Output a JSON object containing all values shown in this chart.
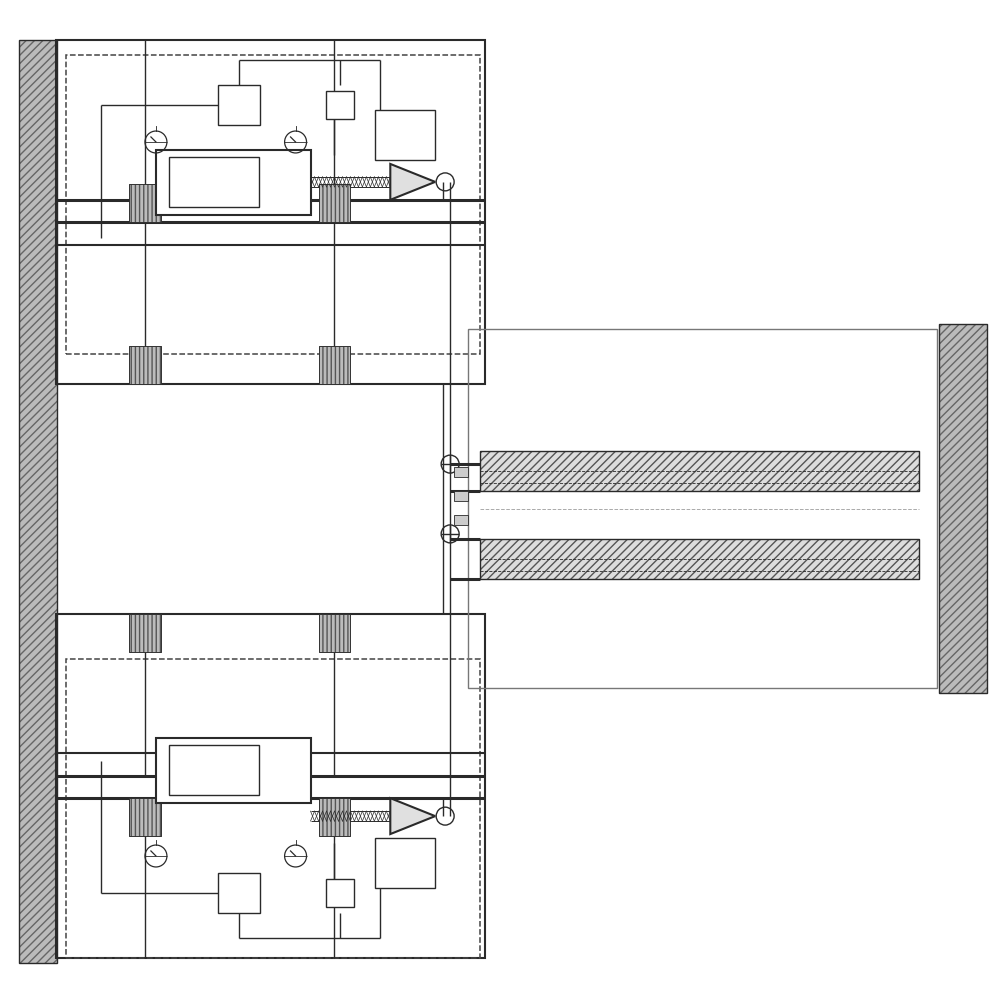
{
  "bg_color": "#ffffff",
  "lc": "#2a2a2a",
  "lw_thick": 2.2,
  "lw_med": 1.5,
  "lw_thin": 1.0,
  "lw_vt": 0.6,
  "hatch_fc": "#cccccc",
  "wall_fc": "#bbbbbb"
}
